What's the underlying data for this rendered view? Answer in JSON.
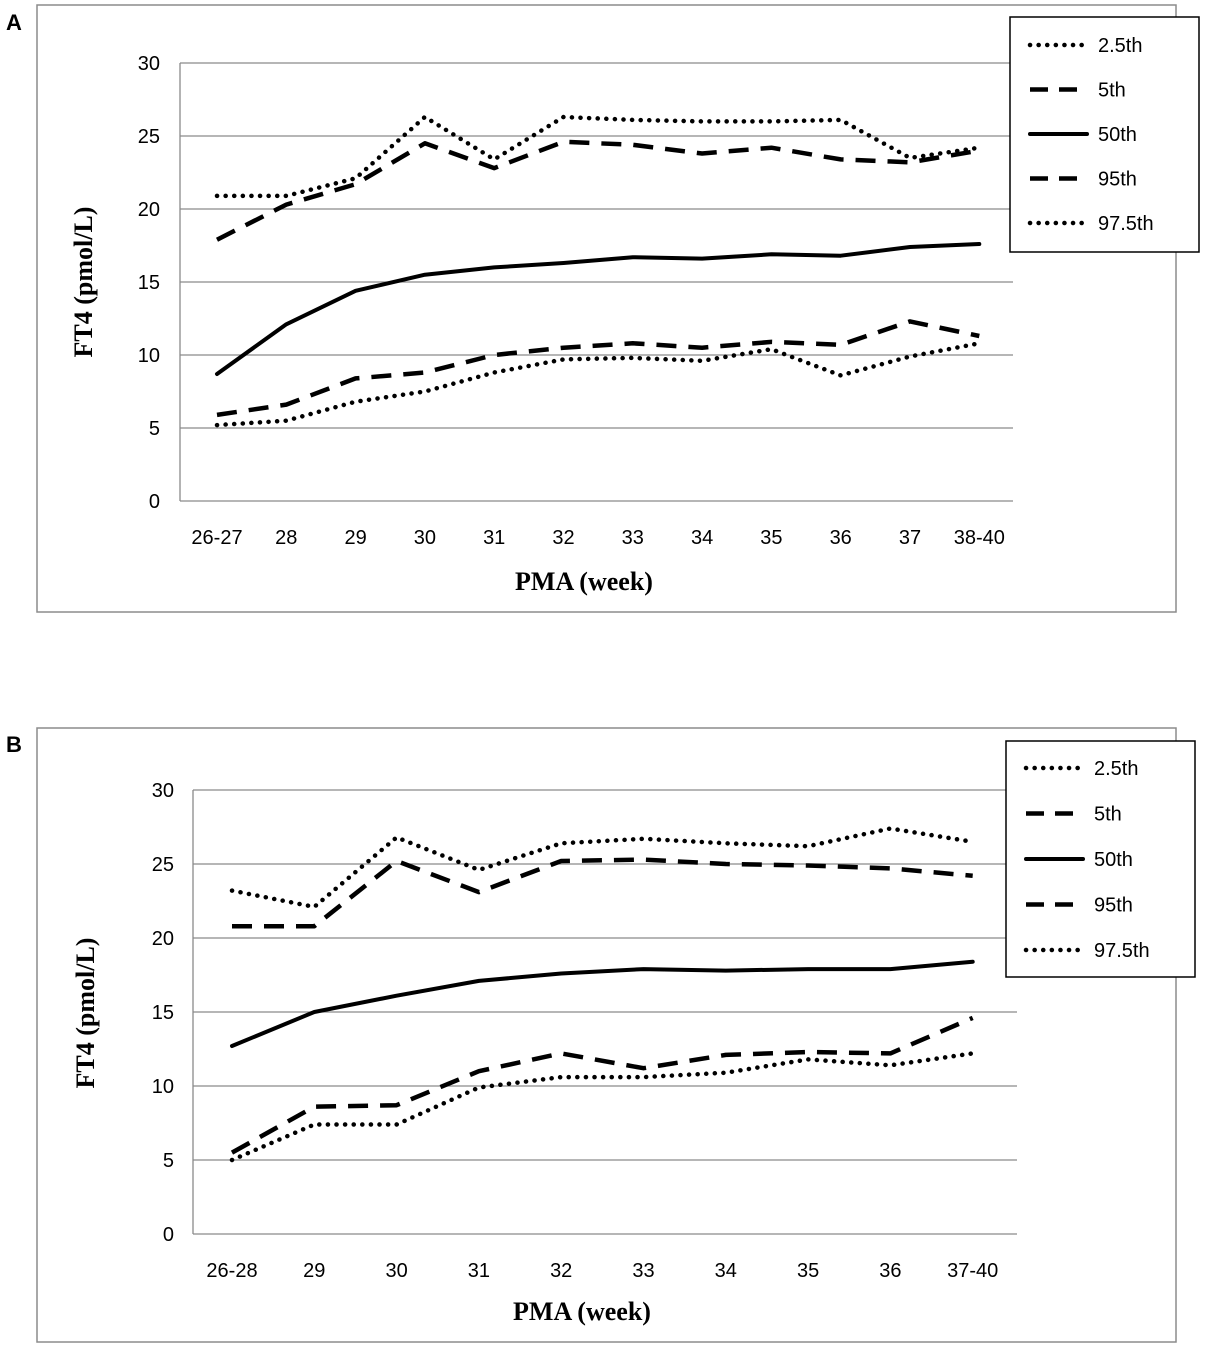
{
  "chart_data": [
    {
      "panel": "A",
      "type": "line",
      "xlabel": "PMA (week)",
      "ylabel": "FT4 (pmol/L)",
      "ylim": [
        0,
        30
      ],
      "yticks": [
        0,
        5,
        10,
        15,
        20,
        25,
        30
      ],
      "grid": true,
      "legend_position": "top-right",
      "categories": [
        "26-27",
        "28",
        "29",
        "30",
        "31",
        "32",
        "33",
        "34",
        "35",
        "36",
        "37",
        "38-40"
      ],
      "series": [
        {
          "name": "2.5th",
          "style": "dotted",
          "values": [
            5.2,
            5.5,
            6.8,
            7.5,
            8.8,
            9.7,
            9.8,
            9.6,
            10.4,
            8.6,
            9.9,
            10.8
          ]
        },
        {
          "name": "5th",
          "style": "dashed",
          "values": [
            5.9,
            6.6,
            8.4,
            8.8,
            10.0,
            10.5,
            10.8,
            10.5,
            10.9,
            10.7,
            12.3,
            11.3
          ]
        },
        {
          "name": "50th",
          "style": "solid",
          "values": [
            8.7,
            12.1,
            14.4,
            15.5,
            16.0,
            16.3,
            16.7,
            16.6,
            16.9,
            16.8,
            17.4,
            17.6
          ]
        },
        {
          "name": "95th",
          "style": "dashed",
          "values": [
            17.9,
            20.3,
            21.7,
            24.5,
            22.8,
            24.6,
            24.4,
            23.8,
            24.2,
            23.4,
            23.2,
            24.0
          ]
        },
        {
          "name": "97.5th",
          "style": "dotted",
          "values": [
            20.9,
            20.9,
            22.1,
            26.3,
            23.4,
            26.3,
            26.1,
            26.0,
            26.0,
            26.1,
            23.5,
            24.2
          ]
        }
      ]
    },
    {
      "panel": "B",
      "type": "line",
      "xlabel": "PMA (week)",
      "ylabel": "FT4 (pmol/L)",
      "ylim": [
        0,
        30
      ],
      "yticks": [
        0,
        5,
        10,
        15,
        20,
        25,
        30
      ],
      "grid": true,
      "legend_position": "top-right",
      "categories": [
        "26-28",
        "29",
        "30",
        "31",
        "32",
        "33",
        "34",
        "35",
        "36",
        "37-40"
      ],
      "series": [
        {
          "name": "2.5th",
          "style": "dotted",
          "values": [
            5.0,
            7.4,
            7.4,
            9.9,
            10.6,
            10.6,
            10.9,
            11.8,
            11.4,
            12.2
          ]
        },
        {
          "name": "5th",
          "style": "dashed",
          "values": [
            5.5,
            8.6,
            8.7,
            11.0,
            12.2,
            11.2,
            12.1,
            12.3,
            12.2,
            14.6
          ]
        },
        {
          "name": "50th",
          "style": "solid",
          "values": [
            12.7,
            15.0,
            16.1,
            17.1,
            17.6,
            17.9,
            17.8,
            17.9,
            17.9,
            18.4
          ]
        },
        {
          "name": "95th",
          "style": "dashed",
          "values": [
            20.8,
            20.8,
            25.2,
            23.1,
            25.2,
            25.3,
            25.0,
            24.9,
            24.7,
            24.2
          ]
        },
        {
          "name": "97.5th",
          "style": "dotted",
          "values": [
            23.2,
            22.1,
            26.8,
            24.6,
            26.4,
            26.7,
            26.4,
            26.2,
            27.4,
            26.5
          ]
        }
      ]
    }
  ]
}
